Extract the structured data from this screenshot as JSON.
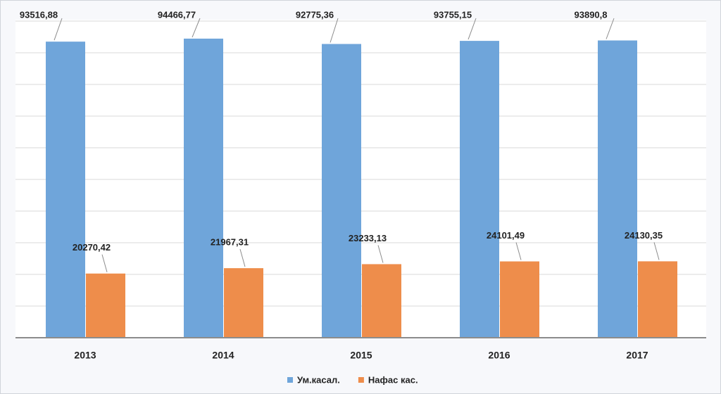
{
  "chart_data": {
    "type": "bar",
    "categories": [
      "2013",
      "2014",
      "2015",
      "2016",
      "2017"
    ],
    "series": [
      {
        "name": "Ум.касал.",
        "color": "#6fa5da",
        "values": [
          93516.88,
          94466.77,
          92775.36,
          93755.15,
          93890.8
        ],
        "value_labels": [
          "93516,88",
          "94466,77",
          "92775,36",
          "93755,15",
          "93890,8"
        ]
      },
      {
        "name": "Нафас кас.",
        "color": "#ee8d4b",
        "values": [
          20270.42,
          21967.31,
          23233.13,
          24101.49,
          24130.35
        ],
        "value_labels": [
          "20270,42",
          "21967,31",
          "23233,13",
          "24101,49",
          "24130,35"
        ]
      }
    ],
    "ylim": [
      0,
      100000
    ],
    "yticks": [
      0,
      10000,
      20000,
      30000,
      40000,
      50000,
      60000,
      70000,
      80000,
      90000,
      100000
    ],
    "grid": true,
    "legend": "bottom"
  }
}
